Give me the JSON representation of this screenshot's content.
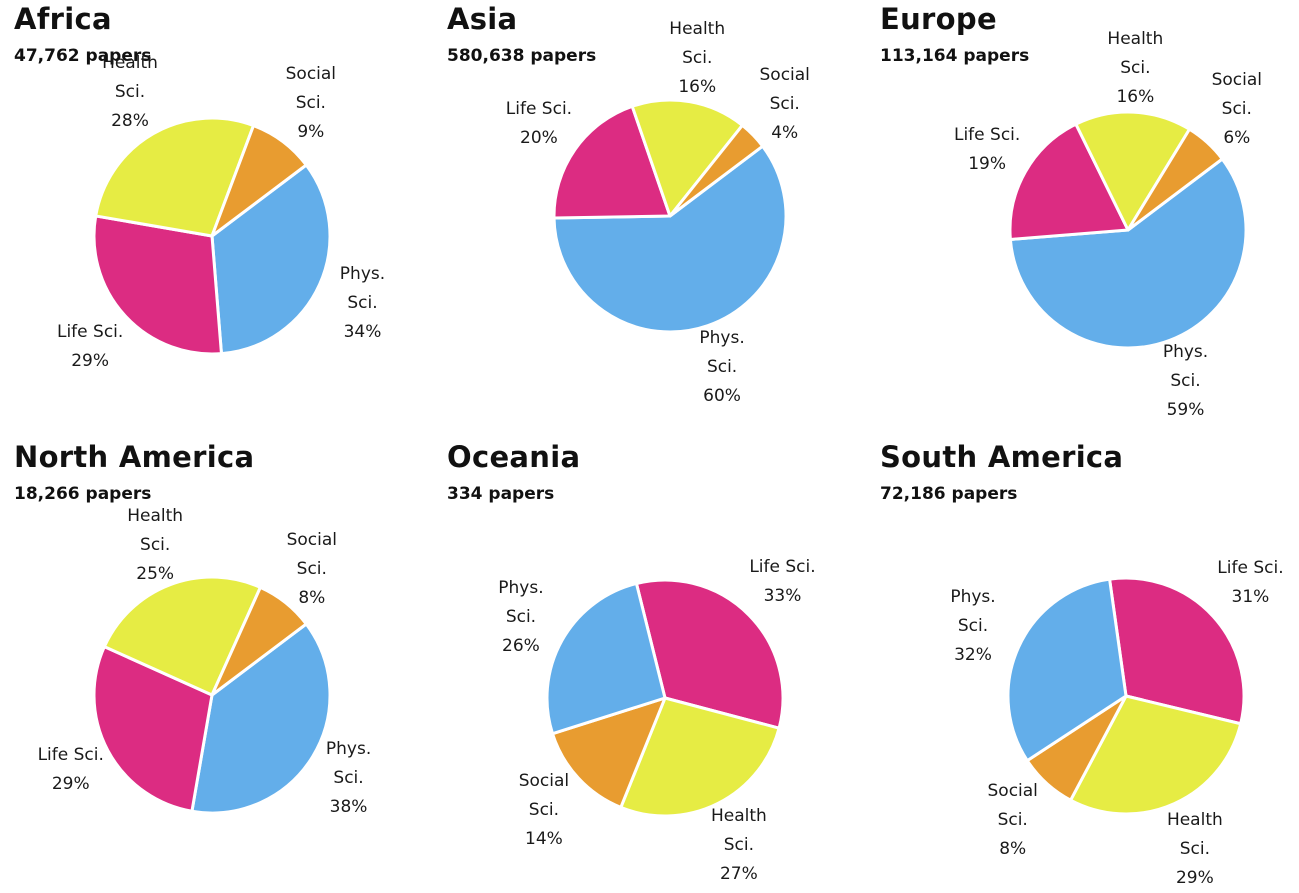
{
  "colors": {
    "Phys. Sci.": "#63aeea",
    "Life Sci.": "#dc2c82",
    "Health Sci.": "#e6ec44",
    "Social Sci.": "#e89c30"
  },
  "chart_data": [
    {
      "type": "pie",
      "title": "Africa",
      "subtitle": "47,762 papers",
      "slices": [
        {
          "label": "Phys. Sci.",
          "display_lines": [
            "Phys.",
            "Sci.",
            "34%"
          ],
          "value": 34
        },
        {
          "label": "Life Sci.",
          "display_lines": [
            "Life Sci.",
            "29%"
          ],
          "value": 29
        },
        {
          "label": "Health Sci.",
          "display_lines": [
            "Health",
            "Sci.",
            "28%"
          ],
          "value": 28
        },
        {
          "label": "Social Sci.",
          "display_lines": [
            "Social",
            "Sci.",
            "9%"
          ],
          "value": 9
        }
      ]
    },
    {
      "type": "pie",
      "title": "Asia",
      "subtitle": "580,638 papers",
      "slices": [
        {
          "label": "Phys. Sci.",
          "display_lines": [
            "Phys.",
            "Sci.",
            "60%"
          ],
          "value": 60
        },
        {
          "label": "Life Sci.",
          "display_lines": [
            "Life Sci.",
            "20%"
          ],
          "value": 20
        },
        {
          "label": "Health Sci.",
          "display_lines": [
            "Health",
            "Sci.",
            "16%"
          ],
          "value": 16
        },
        {
          "label": "Social Sci.",
          "display_lines": [
            "Social",
            "Sci.",
            "4%"
          ],
          "value": 4
        }
      ]
    },
    {
      "type": "pie",
      "title": "Europe",
      "subtitle": "113,164 papers",
      "slices": [
        {
          "label": "Phys. Sci.",
          "display_lines": [
            "Phys.",
            "Sci.",
            "59%"
          ],
          "value": 59
        },
        {
          "label": "Life Sci.",
          "display_lines": [
            "Life Sci.",
            "19%"
          ],
          "value": 19
        },
        {
          "label": "Health Sci.",
          "display_lines": [
            "Health",
            "Sci.",
            "16%"
          ],
          "value": 16
        },
        {
          "label": "Social Sci.",
          "display_lines": [
            "Social",
            "Sci.",
            "6%"
          ],
          "value": 6
        }
      ]
    },
    {
      "type": "pie",
      "title": "North America",
      "subtitle": "18,266 papers",
      "slices": [
        {
          "label": "Phys. Sci.",
          "display_lines": [
            "Phys.",
            "Sci.",
            "38%"
          ],
          "value": 38
        },
        {
          "label": "Life Sci.",
          "display_lines": [
            "Life Sci.",
            "29%"
          ],
          "value": 29
        },
        {
          "label": "Health Sci.",
          "display_lines": [
            "Health",
            "Sci.",
            "25%"
          ],
          "value": 25
        },
        {
          "label": "Social Sci.",
          "display_lines": [
            "Social",
            "Sci.",
            "8%"
          ],
          "value": 8
        }
      ]
    },
    {
      "type": "pie",
      "title": "Oceania",
      "subtitle": "334 papers",
      "slices": [
        {
          "label": "Life Sci.",
          "display_lines": [
            "Life Sci.",
            "33%"
          ],
          "value": 33
        },
        {
          "label": "Health Sci.",
          "display_lines": [
            "Health",
            "Sci.",
            "27%"
          ],
          "value": 27
        },
        {
          "label": "Social Sci.",
          "display_lines": [
            "Social",
            "Sci.",
            "14%"
          ],
          "value": 14
        },
        {
          "label": "Phys. Sci.",
          "display_lines": [
            "Phys.",
            "Sci.",
            "26%"
          ],
          "value": 26
        }
      ]
    },
    {
      "type": "pie",
      "title": "South America",
      "subtitle": "72,186 papers",
      "slices": [
        {
          "label": "Life Sci.",
          "display_lines": [
            "Life Sci.",
            "31%"
          ],
          "value": 31
        },
        {
          "label": "Health Sci.",
          "display_lines": [
            "Health",
            "Sci.",
            "29%"
          ],
          "value": 29
        },
        {
          "label": "Social Sci.",
          "display_lines": [
            "Social",
            "Sci.",
            "8%"
          ],
          "value": 8
        },
        {
          "label": "Phys. Sci.",
          "display_lines": [
            "Phys.",
            "Sci.",
            "32%"
          ],
          "value": 32
        }
      ]
    }
  ]
}
